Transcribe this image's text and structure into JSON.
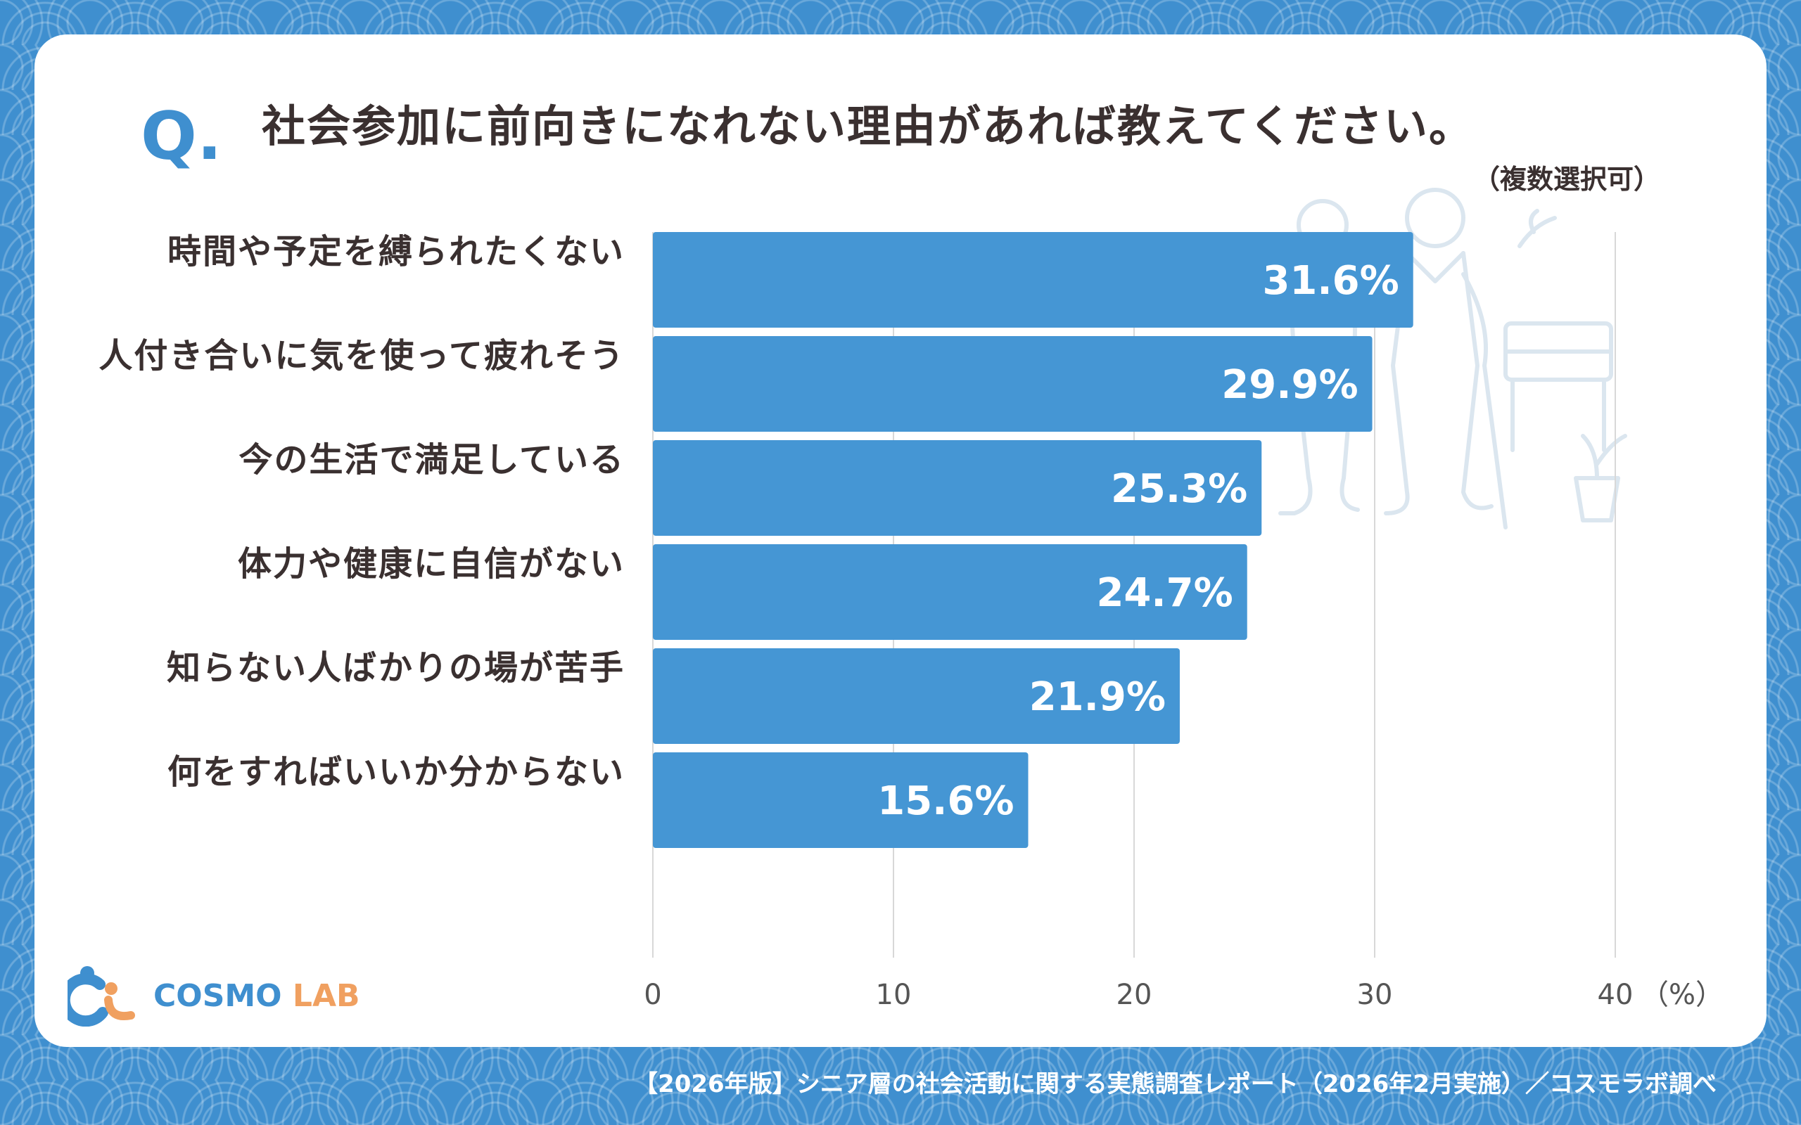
{
  "question": {
    "mark": "Q.",
    "text": "社会参加に前向きになれない理由があれば教えてください。",
    "note": "（複数選択可）"
  },
  "colors": {
    "bar": "#4596d4",
    "background": "#3f8fcf",
    "text": "#3a3030",
    "grid": "#d8d8d8",
    "illustration": "#dbe6ef"
  },
  "chart_data": {
    "type": "bar",
    "orientation": "horizontal",
    "categories": [
      "時間や予定を縛られたくない",
      "人付き合いに気を使って疲れそう",
      "今の生活で満足している",
      "体力や健康に自信がない",
      "知らない人ばかりの場が苦手",
      "何をすればいいか分からない"
    ],
    "values": [
      31.6,
      29.9,
      25.3,
      24.7,
      21.9,
      15.6
    ],
    "value_labels": [
      "31.6%",
      "29.9%",
      "25.3%",
      "24.7%",
      "21.9%",
      "15.6%"
    ],
    "xlim": [
      0,
      40
    ],
    "x_ticks": [
      "0",
      "10",
      "20",
      "30",
      "40"
    ],
    "x_unit": "（%）",
    "grid": true
  },
  "logo": {
    "part1": "COSMO",
    "part2": "LAB"
  },
  "footer": "【2026年版】シニア層の社会活動に関する実態調査レポート（2026年2月実施）／コスモラボ調べ"
}
